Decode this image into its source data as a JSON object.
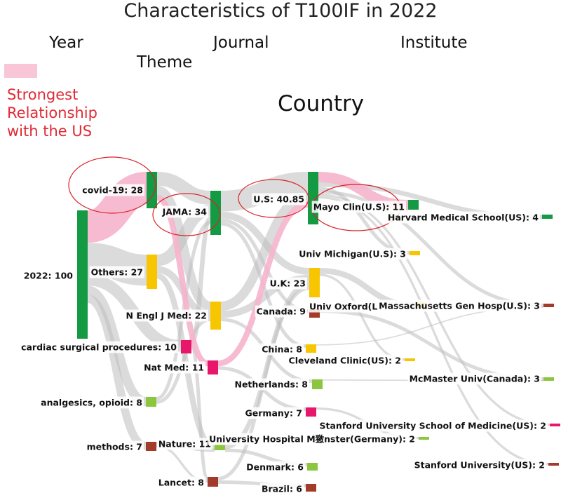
{
  "title": "Characteristics of T100IF in 2022",
  "headers": {
    "year": "Year",
    "theme": "Theme",
    "journal": "Journal",
    "institute": "Institute",
    "country": "Country"
  },
  "legend": {
    "line1": "Strongest",
    "line2": "Relationship",
    "line3": "with the US",
    "swatch_color": "#f9c6d8"
  },
  "colors": {
    "green": "#139a43",
    "yellow": "#f7c600",
    "magenta": "#e8176b",
    "lightgreen": "#8cc63f",
    "brown": "#a23b2a",
    "flow": "#bdbdbd",
    "highlight": "#f6b4cc",
    "circle": "#d9232a"
  },
  "nodes": [
    {
      "id": "y2022",
      "label": "2022: 100",
      "color": "green"
    },
    {
      "id": "covid",
      "label": "covid-19: 28",
      "color": "green"
    },
    {
      "id": "others",
      "label": "Others: 27",
      "color": "yellow"
    },
    {
      "id": "cardiac",
      "label": "cardiac surgical procedures: 10",
      "color": "magenta"
    },
    {
      "id": "analgesics",
      "label": "analgesics, opioid: 8",
      "color": "lightgreen"
    },
    {
      "id": "methods",
      "label": "methods: 7",
      "color": "brown"
    },
    {
      "id": "jama",
      "label": "JAMA: 34",
      "color": "green"
    },
    {
      "id": "nejm",
      "label": "N Engl J Med: 22",
      "color": "yellow"
    },
    {
      "id": "natmed",
      "label": "Nat Med: 11",
      "color": "magenta"
    },
    {
      "id": "nature",
      "label": "Nature: 11",
      "color": "lightgreen"
    },
    {
      "id": "lancet",
      "label": "Lancet: 8",
      "color": "brown"
    },
    {
      "id": "us",
      "label": "U.S: 40.85",
      "color": "green"
    },
    {
      "id": "uk",
      "label": "U.K: 23",
      "color": "yellow"
    },
    {
      "id": "canada",
      "label": "Canada: 9",
      "color": "brown"
    },
    {
      "id": "china",
      "label": "China: 8",
      "color": "yellow"
    },
    {
      "id": "netherlands",
      "label": "Netherlands: 8",
      "color": "lightgreen"
    },
    {
      "id": "germany",
      "label": "Germany: 7",
      "color": "magenta"
    },
    {
      "id": "denmark",
      "label": "Denmark: 6",
      "color": "lightgreen"
    },
    {
      "id": "brazil",
      "label": "Brazil: 6",
      "color": "brown"
    },
    {
      "id": "mayo",
      "label": "Mayo Clin(U.S): 11",
      "color": "green"
    },
    {
      "id": "michigan",
      "label": "Univ Michigan(U.S): 3",
      "color": "yellow"
    },
    {
      "id": "oxford",
      "label": "Univ Oxford(L",
      "color": "yellow"
    },
    {
      "id": "cleveland",
      "label": "Cleveland Clinic(US): 2",
      "color": "yellow"
    },
    {
      "id": "munster",
      "label": "University Hospital M獥nster(Germany): 2",
      "color": "lightgreen"
    },
    {
      "id": "harvard",
      "label": "Harvard Medical School(US): 4",
      "color": "green"
    },
    {
      "id": "mgh",
      "label": "Massachusetts Gen Hosp(U.S): 3",
      "color": "brown"
    },
    {
      "id": "mcmaster",
      "label": "McMaster Univ(Canada): 3",
      "color": "lightgreen"
    },
    {
      "id": "stanfordmed",
      "label": "Stanford University School of Medicine(US): 2",
      "color": "magenta"
    },
    {
      "id": "stanford",
      "label": "Stanford University(US): 2",
      "color": "brown"
    }
  ],
  "links": [
    {
      "source": "y2022",
      "target": "covid",
      "value": 28,
      "highlight": true
    },
    {
      "source": "y2022",
      "target": "others",
      "value": 27
    },
    {
      "source": "y2022",
      "target": "cardiac",
      "value": 10
    },
    {
      "source": "y2022",
      "target": "analgesics",
      "value": 8
    },
    {
      "source": "y2022",
      "target": "methods",
      "value": 7
    },
    {
      "source": "covid",
      "target": "jama",
      "value": 12
    },
    {
      "source": "covid",
      "target": "nejm",
      "value": 8
    },
    {
      "source": "covid",
      "target": "natmed",
      "value": 5,
      "highlight": true
    },
    {
      "source": "others",
      "target": "jama",
      "value": 10
    },
    {
      "source": "others",
      "target": "nejm",
      "value": 6
    },
    {
      "source": "others",
      "target": "nature",
      "value": 5
    },
    {
      "source": "cardiac",
      "target": "jama",
      "value": 4
    },
    {
      "source": "cardiac",
      "target": "lancet",
      "value": 3
    },
    {
      "source": "analgesics",
      "target": "jama",
      "value": 3
    },
    {
      "source": "analgesics",
      "target": "nejm",
      "value": 3
    },
    {
      "source": "methods",
      "target": "nature",
      "value": 3
    },
    {
      "source": "methods",
      "target": "lancet",
      "value": 2
    },
    {
      "source": "jama",
      "target": "us",
      "value": 18
    },
    {
      "source": "jama",
      "target": "uk",
      "value": 6
    },
    {
      "source": "jama",
      "target": "canada",
      "value": 3
    },
    {
      "source": "jama",
      "target": "china",
      "value": 3
    },
    {
      "source": "nejm",
      "target": "us",
      "value": 8
    },
    {
      "source": "nejm",
      "target": "uk",
      "value": 6
    },
    {
      "source": "nejm",
      "target": "netherlands",
      "value": 3
    },
    {
      "source": "natmed",
      "target": "us",
      "value": 5,
      "highlight": true
    },
    {
      "source": "natmed",
      "target": "germany",
      "value": 3
    },
    {
      "source": "nature",
      "target": "uk",
      "value": 4
    },
    {
      "source": "nature",
      "target": "denmark",
      "value": 3
    },
    {
      "source": "lancet",
      "target": "uk",
      "value": 3
    },
    {
      "source": "lancet",
      "target": "brazil",
      "value": 3
    },
    {
      "source": "us",
      "target": "mayo",
      "value": 9,
      "highlight": true
    },
    {
      "source": "us",
      "target": "harvard",
      "value": 4
    },
    {
      "source": "us",
      "target": "michigan",
      "value": 3
    },
    {
      "source": "us",
      "target": "mgh",
      "value": 3
    },
    {
      "source": "us",
      "target": "stanfordmed",
      "value": 2
    },
    {
      "source": "us",
      "target": "stanford",
      "value": 2
    },
    {
      "source": "uk",
      "target": "oxford",
      "value": 5
    },
    {
      "source": "uk",
      "target": "cleveland",
      "value": 2
    },
    {
      "source": "canada",
      "target": "mcmaster",
      "value": 3
    },
    {
      "source": "germany",
      "target": "munster",
      "value": 2
    },
    {
      "source": "china",
      "target": "mgh",
      "value": 1
    },
    {
      "source": "netherlands",
      "target": "mcmaster",
      "value": 1
    }
  ]
}
